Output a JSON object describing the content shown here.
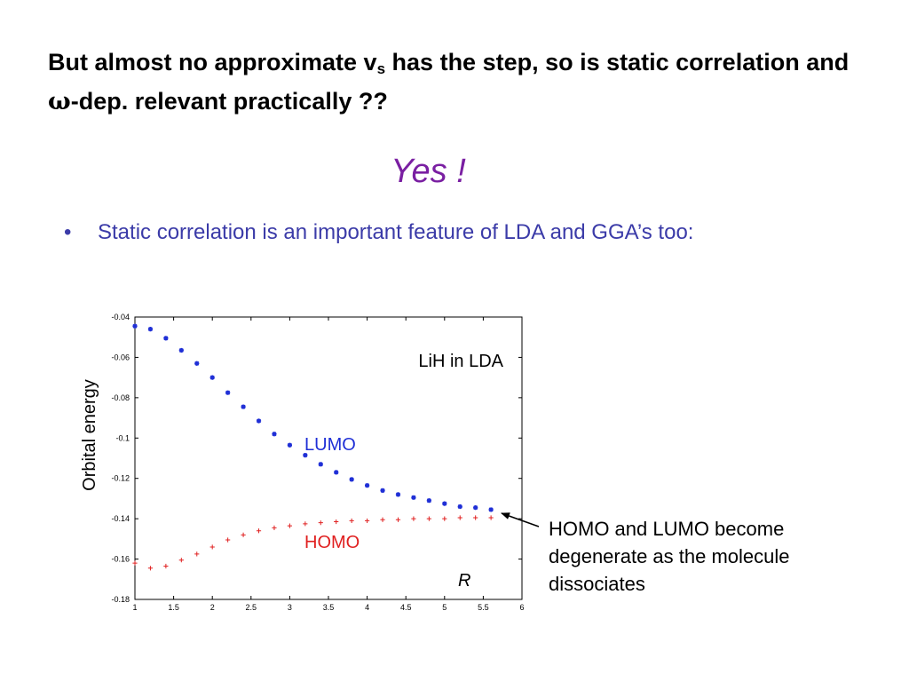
{
  "slide": {
    "title_part1": "But almost no approximate v",
    "title_sub": "s",
    "title_part2": " has the step, so is static correlation and ",
    "title_omega": "ω",
    "title_part3": "-dep. relevant practically ??",
    "yes": "Yes !",
    "bullet_marker": "•",
    "bullet_text": "Static correlation is an important feature of LDA and GGA’s too:",
    "note": "HOMO and LUMO become degenerate as the molecule dissociates",
    "colors": {
      "title": "#000000",
      "yes": "#7a1fa2",
      "bullet": "#3b3ba8"
    }
  },
  "chart_data": {
    "type": "scatter",
    "title": "LiH in LDA",
    "xlabel": "R",
    "ylabel": "Orbital energy",
    "xlim": [
      1,
      6
    ],
    "ylim": [
      -0.18,
      -0.04
    ],
    "xticks": [
      "1",
      "1.5",
      "2",
      "2.5",
      "3",
      "3.5",
      "4",
      "4.5",
      "5",
      "5.5",
      "6"
    ],
    "yticks": [
      "-0.04",
      "-0.06",
      "-0.08",
      "-0.1",
      "-0.12",
      "-0.14",
      "-0.16",
      "-0.18"
    ],
    "grid": false,
    "series": [
      {
        "name": "LUMO",
        "color": "#1f2fd6",
        "marker": "asterisk",
        "x": [
          1.0,
          1.2,
          1.4,
          1.6,
          1.8,
          2.0,
          2.2,
          2.4,
          2.6,
          2.8,
          3.0,
          3.2,
          3.4,
          3.6,
          3.8,
          4.0,
          4.2,
          4.4,
          4.6,
          4.8,
          5.0,
          5.2,
          5.4,
          5.6
        ],
        "y": [
          -0.0445,
          -0.046,
          -0.0505,
          -0.0565,
          -0.063,
          -0.07,
          -0.0775,
          -0.0845,
          -0.0915,
          -0.098,
          -0.1035,
          -0.1085,
          -0.113,
          -0.117,
          -0.1205,
          -0.1235,
          -0.126,
          -0.128,
          -0.1295,
          -0.131,
          -0.1325,
          -0.134,
          -0.1345,
          -0.1355
        ]
      },
      {
        "name": "HOMO",
        "color": "#e02020",
        "marker": "plus",
        "x": [
          1.0,
          1.2,
          1.4,
          1.6,
          1.8,
          2.0,
          2.2,
          2.4,
          2.6,
          2.8,
          3.0,
          3.2,
          3.4,
          3.6,
          3.8,
          4.0,
          4.2,
          4.4,
          4.6,
          4.8,
          5.0,
          5.2,
          5.4,
          5.6
        ],
        "y": [
          -0.162,
          -0.1645,
          -0.1635,
          -0.1605,
          -0.1575,
          -0.154,
          -0.1505,
          -0.148,
          -0.146,
          -0.1445,
          -0.1435,
          -0.1425,
          -0.142,
          -0.1415,
          -0.141,
          -0.141,
          -0.1405,
          -0.1405,
          -0.14,
          -0.14,
          -0.14,
          -0.1395,
          -0.1395,
          -0.1395
        ]
      }
    ]
  }
}
